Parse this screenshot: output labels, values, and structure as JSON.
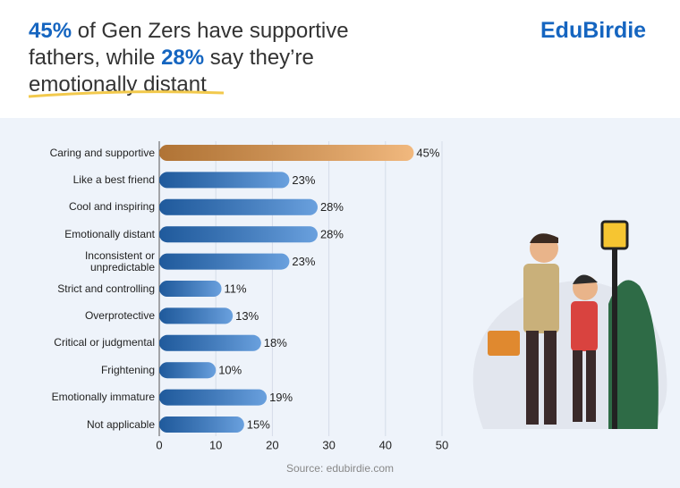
{
  "brand": "EduBirdie",
  "title_parts": [
    "45%",
    "of Gen Zers have supportive",
    "fathers, while",
    "28%",
    "say they’re",
    "emotionally distant"
  ],
  "chart_data": {
    "type": "bar",
    "orientation": "horizontal",
    "categories": [
      "Caring and supportive",
      "Like a best friend",
      "Cool and inspiring",
      "Emotionally distant",
      "Inconsistent or unpredictable",
      "Strict and controlling",
      "Overprotective",
      "Critical or judgmental",
      "Frightening",
      "Emotionally immature",
      "Not applicable"
    ],
    "values": [
      45,
      23,
      28,
      28,
      23,
      11,
      13,
      18,
      10,
      19,
      15
    ],
    "value_labels": [
      "45%",
      "23%",
      "28%",
      "28%",
      "23%",
      "11%",
      "13%",
      "18%",
      "10%",
      "19%",
      "15%"
    ],
    "colors": [
      "#eb9a47",
      "#2a78d0",
      "#2a78d0",
      "#2a78d0",
      "#2a78d0",
      "#2a78d0",
      "#2a78d0",
      "#2a78d0",
      "#2a78d0",
      "#2a78d0",
      "#2a78d0"
    ],
    "xlim": [
      0,
      50
    ],
    "xticks": [
      0,
      10,
      20,
      30,
      40,
      50
    ],
    "grid": true,
    "source": "Source: edubirdie.com"
  }
}
